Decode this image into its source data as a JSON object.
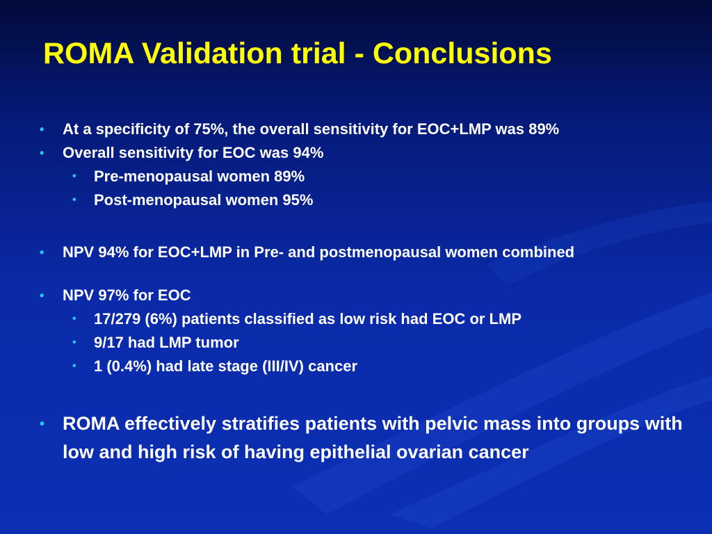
{
  "slide": {
    "title": "ROMA Validation trial - Conclusions",
    "bullet_symbol": "•",
    "colors": {
      "background_dark": "#020a38",
      "background": "#0c2fb4",
      "title": "#ffff00",
      "text": "#ffffff",
      "bullet": "#29c7f0"
    },
    "bullets": [
      {
        "level": 1,
        "text": "At a specificity of 75%, the overall sensitivity for EOC+LMP was 89%"
      },
      {
        "level": 1,
        "text": "Overall sensitivity for EOC was 94%"
      },
      {
        "level": 2,
        "text": "Pre-menopausal women 89%"
      },
      {
        "level": 2,
        "text": "Post-menopausal women 95%"
      },
      {
        "level": 1,
        "text": "NPV 94% for EOC+LMP in Pre- and postmenopausal women combined"
      },
      {
        "level": 1,
        "text": "NPV 97% for EOC"
      },
      {
        "level": 2,
        "text": "17/279 (6%) patients classified as low risk had EOC or LMP"
      },
      {
        "level": 2,
        "text": "9/17 had LMP tumor"
      },
      {
        "level": 2,
        "text": "1 (0.4%) had late stage (III/IV) cancer"
      },
      {
        "level": 1,
        "text": "ROMA effectively stratifies patients with pelvic mass into groups with low and high risk of having epithelial ovarian cancer"
      }
    ]
  }
}
